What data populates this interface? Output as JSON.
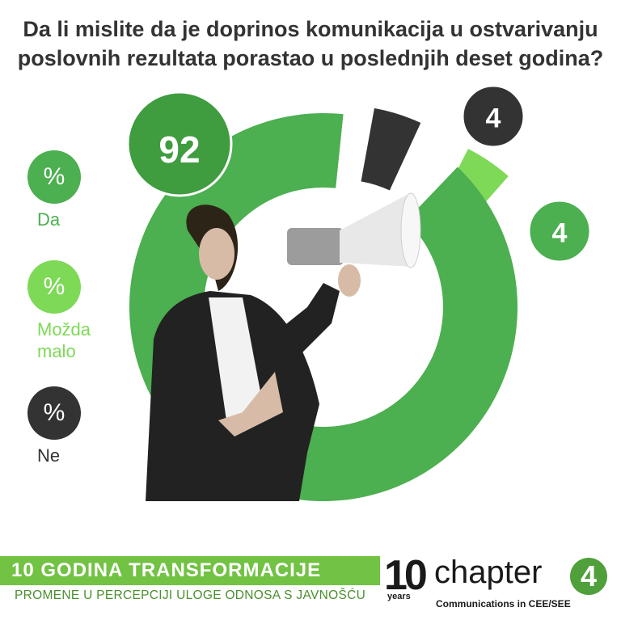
{
  "chart_data": {
    "type": "pie",
    "title": "Da li mislite da je doprinos komunikacija u ostvarivanju poslovnih rezultata porastao u poslednjih deset godina?",
    "categories": [
      "Da",
      "Možda malo",
      "Ne"
    ],
    "values": [
      92,
      4,
      4
    ],
    "value_labels": [
      "92",
      "4",
      "4"
    ],
    "unit": "%",
    "colors": [
      "#4caf50",
      "#7ed957",
      "#333333"
    ],
    "legend": [
      {
        "symbol": "%",
        "label": "Da",
        "color": "#4caf50"
      },
      {
        "symbol": "%",
        "label": "Možda malo",
        "color": "#7ed957"
      },
      {
        "symbol": "%",
        "label": "Ne",
        "color": "#333333"
      }
    ]
  },
  "footer": {
    "title": "10 GODINA TRANSFORMACIJE",
    "subtitle": "PROMENE U PERCEPCIJI ULOGE ODNOSA S JAVNOŠĆU",
    "color": "#72c244"
  },
  "brand": {
    "years_number": "10",
    "years_label": "years",
    "name": "chapter",
    "name_digit": "4",
    "tagline": "Communications in CEE/SEE"
  },
  "image": {
    "icon": "woman-with-megaphone-photo"
  }
}
